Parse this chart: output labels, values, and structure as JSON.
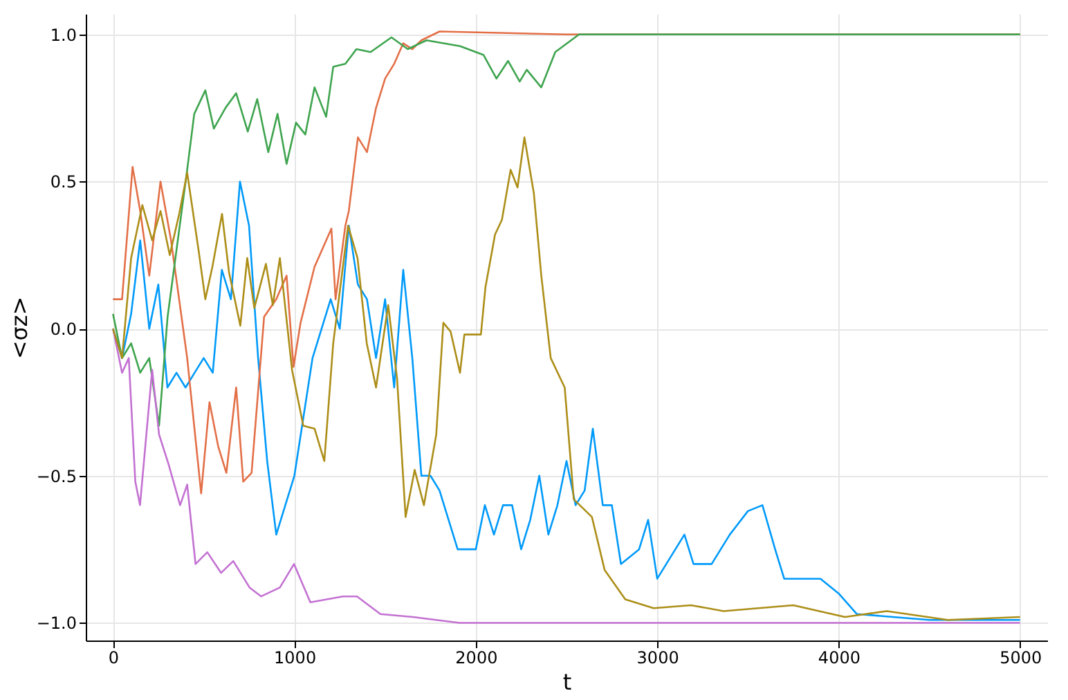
{
  "chart_data": {
    "type": "line",
    "xlabel": "t",
    "ylabel": "<σz>",
    "xlim": [
      -150,
      5150
    ],
    "ylim": [
      -1.06,
      1.07
    ],
    "xticks": [
      0,
      1000,
      2000,
      3000,
      4000,
      5000
    ],
    "yticks": [
      {
        "value": -1,
        "label": "−1.0"
      },
      {
        "value": -0.5,
        "label": "−0.5"
      },
      {
        "value": 0,
        "label": "0.0"
      },
      {
        "value": 0.5,
        "label": "0.5"
      },
      {
        "value": 1,
        "label": "1.0"
      }
    ],
    "grid": true,
    "line_style": "solid",
    "series": [
      {
        "color": "#009afa",
        "x": [
          0,
          50,
          100,
          150,
          200,
          250,
          300,
          350,
          400,
          450,
          500,
          550,
          600,
          650,
          700,
          750,
          800,
          850,
          900,
          950,
          1000,
          1050,
          1100,
          1150,
          1200,
          1250,
          1300,
          1350,
          1400,
          1450,
          1500,
          1550,
          1600,
          1650,
          1700,
          1750,
          1800,
          1850,
          1900,
          1950,
          2000,
          2050,
          2100,
          2150,
          2200,
          2250,
          2300,
          2350,
          2400,
          2450,
          2500,
          2550,
          2600,
          2645,
          2700,
          2750,
          2800,
          2900,
          2950,
          3000,
          3100,
          3150,
          3200,
          3300,
          3400,
          3500,
          3580,
          3650,
          3700,
          3800,
          3900,
          4000,
          4100,
          4300,
          4500,
          5000
        ],
        "values": [
          0,
          -0.1,
          0.05,
          0.3,
          0.0,
          0.15,
          -0.2,
          -0.15,
          -0.2,
          -0.15,
          -0.1,
          -0.15,
          0.2,
          0.1,
          0.5,
          0.35,
          -0.1,
          -0.45,
          -0.7,
          -0.6,
          -0.5,
          -0.3,
          -0.1,
          0.0,
          0.1,
          0.0,
          0.35,
          0.15,
          0.1,
          -0.1,
          0.1,
          -0.2,
          0.2,
          -0.1,
          -0.5,
          -0.5,
          -0.55,
          -0.65,
          -0.75,
          -0.75,
          -0.75,
          -0.6,
          -0.7,
          -0.6,
          -0.6,
          -0.75,
          -0.65,
          -0.5,
          -0.7,
          -0.6,
          -0.45,
          -0.6,
          -0.55,
          -0.34,
          -0.6,
          -0.6,
          -0.8,
          -0.75,
          -0.65,
          -0.85,
          -0.75,
          -0.7,
          -0.8,
          -0.8,
          -0.7,
          -0.62,
          -0.6,
          -0.75,
          -0.85,
          -0.85,
          -0.85,
          -0.9,
          -0.97,
          -0.98,
          -0.99,
          -0.99
        ]
      },
      {
        "color": "#e36f47",
        "x": [
          0,
          50,
          108,
          150,
          200,
          262,
          320,
          409,
          486,
          532,
          580,
          625,
          679,
          718,
          764,
          833,
          900,
          957,
          995,
          1034,
          1111,
          1204,
          1227,
          1281,
          1300,
          1350,
          1400,
          1450,
          1500,
          1550,
          1600,
          1650,
          1700,
          1767,
          1800,
          2500,
          5000
        ],
        "values": [
          0.1,
          0.1,
          0.55,
          0.4,
          0.18,
          0.5,
          0.3,
          -0.1,
          -0.56,
          -0.25,
          -0.4,
          -0.49,
          -0.2,
          -0.52,
          -0.49,
          0.04,
          0.1,
          0.18,
          -0.13,
          0.02,
          0.21,
          0.34,
          0.1,
          0.35,
          0.4,
          0.65,
          0.6,
          0.75,
          0.85,
          0.9,
          0.97,
          0.95,
          0.98,
          1.0,
          1.01,
          1.0,
          1.0
        ]
      },
      {
        "color": "#3ea44e",
        "x": [
          0,
          50,
          100,
          150,
          200,
          254,
          301,
          409,
          448,
          509,
          556,
          620,
          679,
          743,
          795,
          856,
          907,
          957,
          1009,
          1060,
          1111,
          1175,
          1214,
          1281,
          1342,
          1420,
          1535,
          1625,
          1728,
          1914,
          2043,
          2114,
          2178,
          2242,
          2281,
          2361,
          2438,
          2569,
          3000,
          5000
        ],
        "values": [
          0.05,
          -0.1,
          -0.05,
          -0.15,
          -0.1,
          -0.33,
          0.04,
          0.54,
          0.73,
          0.81,
          0.68,
          0.75,
          0.8,
          0.67,
          0.78,
          0.6,
          0.73,
          0.56,
          0.7,
          0.66,
          0.82,
          0.72,
          0.89,
          0.9,
          0.95,
          0.94,
          0.99,
          0.95,
          0.98,
          0.96,
          0.93,
          0.85,
          0.91,
          0.84,
          0.88,
          0.82,
          0.94,
          1.0,
          1.0,
          1.0
        ]
      },
      {
        "color": "#c371d2",
        "x": [
          0,
          50,
          87,
          123,
          149,
          216,
          254,
          306,
          370,
          409,
          455,
          520,
          596,
          663,
          753,
          817,
          920,
          998,
          1088,
          1268,
          1345,
          1474,
          1653,
          1910,
          5000
        ],
        "values": [
          0,
          -0.15,
          -0.1,
          -0.52,
          -0.6,
          -0.14,
          -0.36,
          -0.46,
          -0.6,
          -0.53,
          -0.8,
          -0.76,
          -0.83,
          -0.79,
          -0.88,
          -0.91,
          -0.88,
          -0.8,
          -0.93,
          -0.91,
          -0.91,
          -0.97,
          -0.98,
          -1.0,
          -1.0
        ]
      },
      {
        "color": "#ac8e18",
        "x": [
          0,
          50,
          100,
          162,
          216,
          262,
          313,
          365,
          409,
          471,
          509,
          548,
          601,
          640,
          702,
          740,
          779,
          843,
          881,
          920,
          987,
          1049,
          1111,
          1165,
          1214,
          1296,
          1348,
          1399,
          1450,
          1517,
          1566,
          1613,
          1663,
          1714,
          1782,
          1821,
          1861,
          1913,
          1937,
          2028,
          2053,
          2106,
          2144,
          2192,
          2230,
          2268,
          2320,
          2361,
          2413,
          2490,
          2540,
          2640,
          2710,
          2824,
          2980,
          3186,
          3366,
          3750,
          4035,
          4266,
          4602,
          5000
        ],
        "values": [
          0,
          -0.1,
          0.24,
          0.42,
          0.3,
          0.4,
          0.25,
          0.39,
          0.53,
          0.27,
          0.1,
          0.21,
          0.39,
          0.19,
          0.01,
          0.24,
          0.07,
          0.22,
          0.08,
          0.24,
          -0.14,
          -0.33,
          -0.34,
          -0.45,
          -0.05,
          0.35,
          0.24,
          -0.05,
          -0.2,
          0.08,
          -0.17,
          -0.64,
          -0.48,
          -0.6,
          -0.36,
          0.02,
          -0.01,
          -0.15,
          -0.02,
          -0.02,
          0.14,
          0.32,
          0.37,
          0.54,
          0.48,
          0.65,
          0.46,
          0.18,
          -0.1,
          -0.2,
          -0.58,
          -0.64,
          -0.82,
          -0.92,
          -0.95,
          -0.94,
          -0.96,
          -0.94,
          -0.98,
          -0.96,
          -0.99,
          -0.98
        ]
      }
    ]
  }
}
